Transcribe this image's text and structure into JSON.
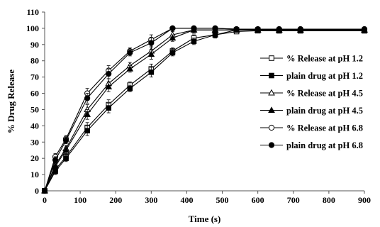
{
  "chart_data": {
    "type": "line",
    "title": "",
    "xlabel": "Time (s)",
    "ylabel": "% Drug Release",
    "xlim": [
      0,
      900
    ],
    "ylim": [
      0,
      110
    ],
    "x_ticks": [
      0,
      100,
      200,
      300,
      400,
      500,
      600,
      700,
      800,
      900
    ],
    "y_ticks": [
      0,
      10,
      20,
      30,
      40,
      50,
      60,
      70,
      80,
      90,
      100,
      110
    ],
    "grid": false,
    "legend_position": "right",
    "error_bars": true,
    "series": [
      {
        "name": "% Release at pH 1.2",
        "marker": "square-open",
        "x": [
          0,
          30,
          60,
          120,
          180,
          240,
          300,
          360,
          420,
          480,
          540,
          600,
          660,
          720,
          900
        ],
        "y": [
          0,
          13,
          21,
          39,
          53,
          65,
          75,
          86,
          94,
          96,
          98,
          98.5,
          98.5,
          98.5,
          98.5
        ],
        "err": [
          1,
          2,
          2,
          3,
          3,
          2,
          3,
          2,
          2,
          2,
          1,
          1,
          1,
          1,
          1
        ]
      },
      {
        "name": "plain drug at pH 1.2",
        "marker": "square-filled",
        "x": [
          0,
          30,
          60,
          120,
          180,
          240,
          300,
          360,
          420,
          480,
          540,
          600,
          660,
          720,
          900
        ],
        "y": [
          0,
          12,
          20,
          37,
          51,
          63,
          73,
          85,
          92,
          96,
          99,
          99,
          98.5,
          98.5,
          98.5
        ],
        "err": [
          1,
          2,
          2,
          3,
          3,
          2,
          3,
          2,
          2,
          2,
          1,
          1,
          1,
          1,
          1
        ]
      },
      {
        "name": "% Release at pH 4.5",
        "marker": "triangle-open",
        "x": [
          0,
          30,
          60,
          120,
          180,
          240,
          300,
          360,
          420,
          480,
          540,
          600,
          660,
          720,
          900
        ],
        "y": [
          0,
          16,
          26,
          50,
          66,
          77,
          86,
          96,
          99,
          99,
          99,
          99,
          99,
          99,
          99
        ],
        "err": [
          1,
          2,
          2,
          3,
          3,
          2,
          3,
          2,
          2,
          1,
          1,
          1,
          1,
          1,
          1
        ]
      },
      {
        "name": "plain drug at pH 4.5",
        "marker": "triangle-filled",
        "x": [
          0,
          30,
          60,
          120,
          180,
          240,
          300,
          360,
          420,
          480,
          540,
          600,
          660,
          720,
          900
        ],
        "y": [
          0,
          15,
          25,
          47,
          64,
          75,
          84,
          94,
          99,
          99,
          99,
          99,
          99,
          99,
          99
        ],
        "err": [
          1,
          2,
          2,
          3,
          3,
          2,
          3,
          2,
          2,
          1,
          1,
          1,
          1,
          1,
          1
        ]
      },
      {
        "name": "% Release at pH 6.8",
        "marker": "circle-open",
        "x": [
          0,
          30,
          60,
          120,
          180,
          240,
          300,
          360,
          420,
          480,
          540,
          600,
          660,
          720,
          900
        ],
        "y": [
          0,
          21,
          32,
          60,
          74,
          86,
          93,
          100,
          100,
          100,
          99.5,
          99.5,
          99.5,
          99.5,
          99.5
        ],
        "err": [
          1,
          2,
          2,
          3,
          3,
          2,
          3,
          1,
          1,
          1,
          1,
          1,
          1,
          1,
          1
        ]
      },
      {
        "name": "plain drug at pH 6.8",
        "marker": "circle-filled",
        "x": [
          0,
          30,
          60,
          120,
          180,
          240,
          300,
          360,
          420,
          480,
          540,
          600,
          660,
          720,
          900
        ],
        "y": [
          0,
          19,
          31,
          57,
          72,
          85,
          91,
          100,
          100,
          100,
          99.5,
          99.5,
          99.5,
          99.5,
          99.5
        ],
        "err": [
          1,
          2,
          2,
          3,
          3,
          2,
          3,
          1,
          1,
          1,
          1,
          1,
          1,
          1,
          1
        ]
      }
    ]
  }
}
